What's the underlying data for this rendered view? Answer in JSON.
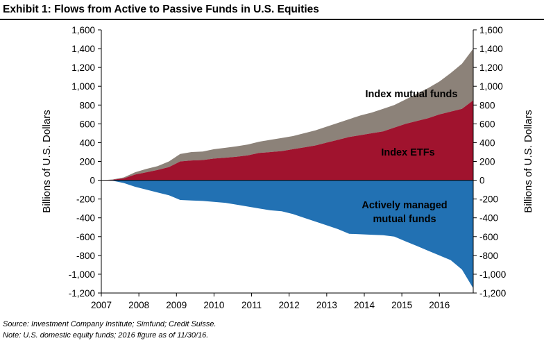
{
  "header": {
    "title": "Exhibit 1: Flows from Active to Passive Funds in U.S. Equities"
  },
  "footer": {
    "source": "Source: Investment Company Institute; Simfund; Credit Suisse.",
    "note": "Note: U.S. domestic equity funds; 2016 figure as of 11/30/16."
  },
  "chart_data": {
    "type": "area",
    "title": "Exhibit 1: Flows from Active to Passive Funds in U.S. Equities",
    "ylabel_left": "Billions of U.S. Dollars",
    "ylabel_right": "Billions of U.S. Dollars",
    "ylim": [
      -1200,
      1600
    ],
    "yticks": [
      1600,
      1400,
      1200,
      1000,
      800,
      600,
      400,
      200,
      0,
      -200,
      -400,
      -600,
      -800,
      -1000,
      -1200
    ],
    "ytick_labels": [
      "1,600",
      "1,400",
      "1,200",
      "1,000",
      "800",
      "600",
      "400",
      "200",
      "0",
      "-200",
      "-400",
      "-600",
      "-800",
      "-1,000",
      "-1,200"
    ],
    "xticks": [
      "2007",
      "2008",
      "2009",
      "2010",
      "2011",
      "2012",
      "2013",
      "2014",
      "2015",
      "2016"
    ],
    "grid": false,
    "colors": {
      "index_etfs": "#a0132e",
      "index_mutual_funds": "#8c8279",
      "actively_managed": "#2271b3"
    },
    "annotations": {
      "index_mutual_funds": "Index mutual funds",
      "index_etfs": "Index ETFs",
      "actively_managed_1": "Actively managed",
      "actively_managed_2": "mutual funds"
    },
    "x": [
      2007.0,
      2007.3,
      2007.6,
      2007.9,
      2008.2,
      2008.5,
      2008.8,
      2009.1,
      2009.4,
      2009.7,
      2010.0,
      2010.3,
      2010.6,
      2010.9,
      2011.2,
      2011.5,
      2011.8,
      2012.1,
      2012.4,
      2012.7,
      2013.0,
      2013.3,
      2013.6,
      2013.9,
      2014.2,
      2014.5,
      2014.8,
      2015.1,
      2015.4,
      2015.7,
      2016.0,
      2016.3,
      2016.6,
      2016.9
    ],
    "series": [
      {
        "name": "Index ETFs",
        "values": [
          0,
          5,
          20,
          60,
          85,
          110,
          140,
          200,
          210,
          215,
          230,
          240,
          250,
          265,
          290,
          300,
          310,
          330,
          350,
          370,
          400,
          430,
          460,
          480,
          500,
          520,
          560,
          600,
          630,
          660,
          700,
          730,
          760,
          850
        ]
      },
      {
        "name": "Index mutual funds",
        "values": [
          0,
          8,
          30,
          85,
          120,
          150,
          200,
          280,
          300,
          305,
          330,
          345,
          360,
          380,
          410,
          430,
          450,
          470,
          500,
          530,
          570,
          610,
          650,
          690,
          720,
          760,
          800,
          860,
          920,
          980,
          1050,
          1140,
          1240,
          1400
        ]
      },
      {
        "name": "Actively managed mutual funds",
        "values": [
          0,
          -5,
          -30,
          -70,
          -100,
          -130,
          -160,
          -210,
          -215,
          -220,
          -230,
          -240,
          -260,
          -280,
          -300,
          -320,
          -330,
          -360,
          -400,
          -440,
          -480,
          -520,
          -570,
          -575,
          -580,
          -585,
          -600,
          -650,
          -700,
          -750,
          -800,
          -850,
          -950,
          -1150
        ]
      }
    ]
  }
}
